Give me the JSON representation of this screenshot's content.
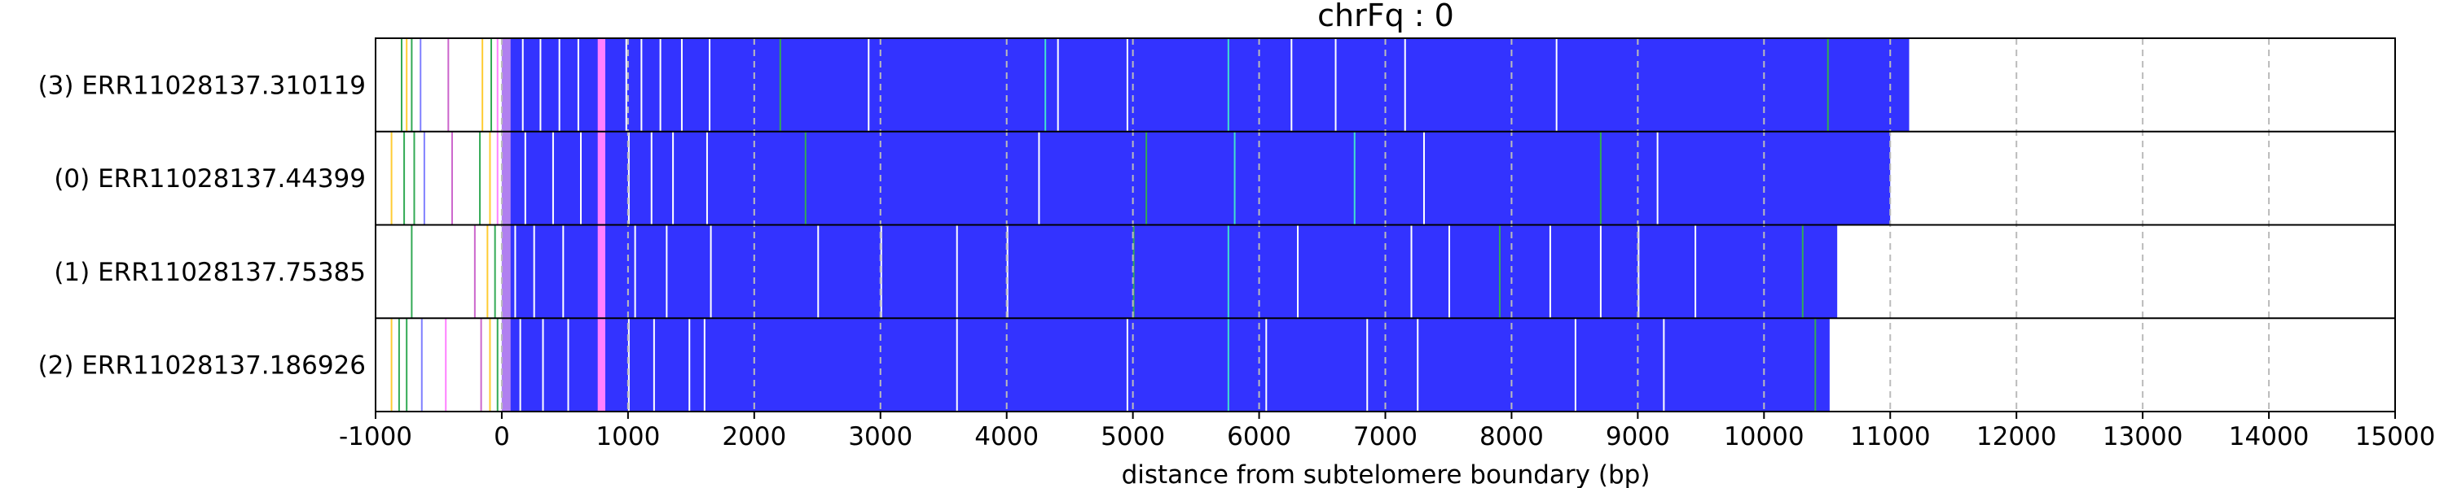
{
  "chart_data": {
    "type": "heatmap",
    "title": "chrFq : 0",
    "xlabel": "distance from subtelomere boundary (bp)",
    "xlim": [
      -1000,
      15000
    ],
    "xticks": [
      -1000,
      0,
      1000,
      2000,
      3000,
      4000,
      5000,
      6000,
      7000,
      8000,
      9000,
      10000,
      11000,
      12000,
      13000,
      14000,
      15000
    ],
    "grid": "vertical dashed at x ticks",
    "colors": {
      "main_repeat": "#3333ff",
      "subtelomere_start": "#b080f0",
      "pink_band": "#ff80ff",
      "variant_green": "#33aa55",
      "variant_cyan": "#40e0d0",
      "gap_white": "#ffffff",
      "grid": "#bbbbbb"
    },
    "reads": [
      {
        "label": "(3) ERR11028137.310119",
        "end": 11150,
        "lines": [
          [
            -800,
            "#33aa55"
          ],
          [
            -760,
            "#ffcc33"
          ],
          [
            -720,
            "#33aa55"
          ],
          [
            -650,
            "#8080ff"
          ],
          [
            -430,
            "#cc66cc"
          ],
          [
            -160,
            "#ffcc33"
          ],
          [
            -90,
            "#33aa55"
          ],
          [
            -40,
            "#ff80ff"
          ],
          [
            160,
            "#ffffff"
          ],
          [
            300,
            "#ffffff"
          ],
          [
            450,
            "#ffffff"
          ],
          [
            600,
            "#ffffff"
          ],
          [
            980,
            "#ffffff"
          ],
          [
            1100,
            "#ffffff"
          ],
          [
            1250,
            "#ffffff"
          ],
          [
            1420,
            "#ffffff"
          ],
          [
            1640,
            "#ffffff"
          ],
          [
            2200,
            "#33aa55"
          ],
          [
            2900,
            "#ffffff"
          ],
          [
            4300,
            "#40e0d0"
          ],
          [
            4400,
            "#ffffff"
          ],
          [
            4950,
            "#ffffff"
          ],
          [
            5750,
            "#40e0d0"
          ],
          [
            6250,
            "#ffffff"
          ],
          [
            6600,
            "#ffffff"
          ],
          [
            7150,
            "#ffffff"
          ],
          [
            8350,
            "#ffffff"
          ],
          [
            10500,
            "#33aa55"
          ]
        ]
      },
      {
        "label": "(0) ERR11028137.44399",
        "end": 11000,
        "lines": [
          [
            -880,
            "#ffcc33"
          ],
          [
            -780,
            "#33aa55"
          ],
          [
            -700,
            "#33aa55"
          ],
          [
            -620,
            "#8080ff"
          ],
          [
            -400,
            "#cc66cc"
          ],
          [
            -180,
            "#33aa55"
          ],
          [
            -100,
            "#ffcc33"
          ],
          [
            -40,
            "#ff80ff"
          ],
          [
            180,
            "#ffffff"
          ],
          [
            400,
            "#ffffff"
          ],
          [
            620,
            "#ffffff"
          ],
          [
            1000,
            "#ffffff"
          ],
          [
            1180,
            "#ffffff"
          ],
          [
            1350,
            "#ffffff"
          ],
          [
            1620,
            "#ffffff"
          ],
          [
            2400,
            "#33aa55"
          ],
          [
            4250,
            "#ffffff"
          ],
          [
            5100,
            "#33aa55"
          ],
          [
            5800,
            "#40e0d0"
          ],
          [
            6750,
            "#40e0d0"
          ],
          [
            7300,
            "#ffffff"
          ],
          [
            8700,
            "#33aa55"
          ],
          [
            9150,
            "#ffffff"
          ]
        ]
      },
      {
        "label": "(1) ERR11028137.75385",
        "end": 10580,
        "lines": [
          [
            -720,
            "#33aa55"
          ],
          [
            -640,
            "#ffffff"
          ],
          [
            -220,
            "#cc66cc"
          ],
          [
            -120,
            "#ffcc33"
          ],
          [
            -60,
            "#33aa55"
          ],
          [
            100,
            "#ffffff"
          ],
          [
            250,
            "#ffffff"
          ],
          [
            480,
            "#ffffff"
          ],
          [
            1050,
            "#ffffff"
          ],
          [
            1300,
            "#ffffff"
          ],
          [
            1650,
            "#ffffff"
          ],
          [
            2500,
            "#ffffff"
          ],
          [
            3000,
            "#ffffff"
          ],
          [
            3600,
            "#ffffff"
          ],
          [
            4000,
            "#ffffff"
          ],
          [
            5000,
            "#33aa55"
          ],
          [
            5750,
            "#40e0d0"
          ],
          [
            6300,
            "#ffffff"
          ],
          [
            7200,
            "#ffffff"
          ],
          [
            7500,
            "#ffffff"
          ],
          [
            7900,
            "#33aa55"
          ],
          [
            8300,
            "#ffffff"
          ],
          [
            8700,
            "#ffffff"
          ],
          [
            9000,
            "#ffffff"
          ],
          [
            9450,
            "#ffffff"
          ],
          [
            10300,
            "#33aa55"
          ]
        ]
      },
      {
        "label": "(2) ERR11028137.186926",
        "end": 10520,
        "lines": [
          [
            -880,
            "#ffcc33"
          ],
          [
            -820,
            "#33aa55"
          ],
          [
            -760,
            "#33aa55"
          ],
          [
            -640,
            "#8080ff"
          ],
          [
            -450,
            "#ff80ff"
          ],
          [
            -170,
            "#cc66cc"
          ],
          [
            -100,
            "#ffcc33"
          ],
          [
            -40,
            "#33aa55"
          ],
          [
            140,
            "#ffffff"
          ],
          [
            320,
            "#ffffff"
          ],
          [
            520,
            "#ffffff"
          ],
          [
            1000,
            "#ffffff"
          ],
          [
            1200,
            "#ffffff"
          ],
          [
            1480,
            "#ffffff"
          ],
          [
            1600,
            "#ffffff"
          ],
          [
            3600,
            "#ffffff"
          ],
          [
            4950,
            "#ffffff"
          ],
          [
            5750,
            "#40e0d0"
          ],
          [
            6050,
            "#ffffff"
          ],
          [
            6850,
            "#ffffff"
          ],
          [
            7250,
            "#ffffff"
          ],
          [
            8500,
            "#ffffff"
          ],
          [
            9200,
            "#ffffff"
          ],
          [
            10400,
            "#33aa55"
          ]
        ]
      }
    ]
  }
}
